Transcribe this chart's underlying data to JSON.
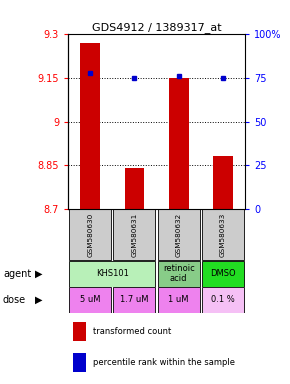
{
  "title": "GDS4912 / 1389317_at",
  "samples": [
    "GSM580630",
    "GSM580631",
    "GSM580632",
    "GSM580633"
  ],
  "bar_values": [
    9.27,
    8.84,
    9.15,
    8.88
  ],
  "percentile_values": [
    78,
    75,
    76,
    75
  ],
  "ylim_left": [
    8.7,
    9.3
  ],
  "ylim_right": [
    0,
    100
  ],
  "yticks_left": [
    8.7,
    8.85,
    9.0,
    9.15,
    9.3
  ],
  "yticks_right": [
    0,
    25,
    50,
    75,
    100
  ],
  "ytick_labels_left": [
    "8.7",
    "8.85",
    "9",
    "9.15",
    "9.3"
  ],
  "ytick_labels_right": [
    "0",
    "25",
    "50",
    "75",
    "100%"
  ],
  "hlines": [
    8.85,
    9.0,
    9.15
  ],
  "dose_labels": [
    "5 uM",
    "1.7 uM",
    "1 uM",
    "0.1 %"
  ],
  "bar_color": "#cc0000",
  "dot_color": "#0000cc",
  "sample_box_color": "#cccccc",
  "agent_data": [
    {
      "cols": [
        0,
        1
      ],
      "label": "KHS101",
      "color": "#b8f0b8"
    },
    {
      "cols": [
        2
      ],
      "label": "retinoic\nacid",
      "color": "#88cc88"
    },
    {
      "cols": [
        3
      ],
      "label": "DMSO",
      "color": "#22dd22"
    }
  ],
  "dose_colors": [
    "#ee82ee",
    "#ee82ee",
    "#ee82ee",
    "#f5c0f5"
  ],
  "legend_bar_color": "#cc0000",
  "legend_dot_color": "#0000cc"
}
